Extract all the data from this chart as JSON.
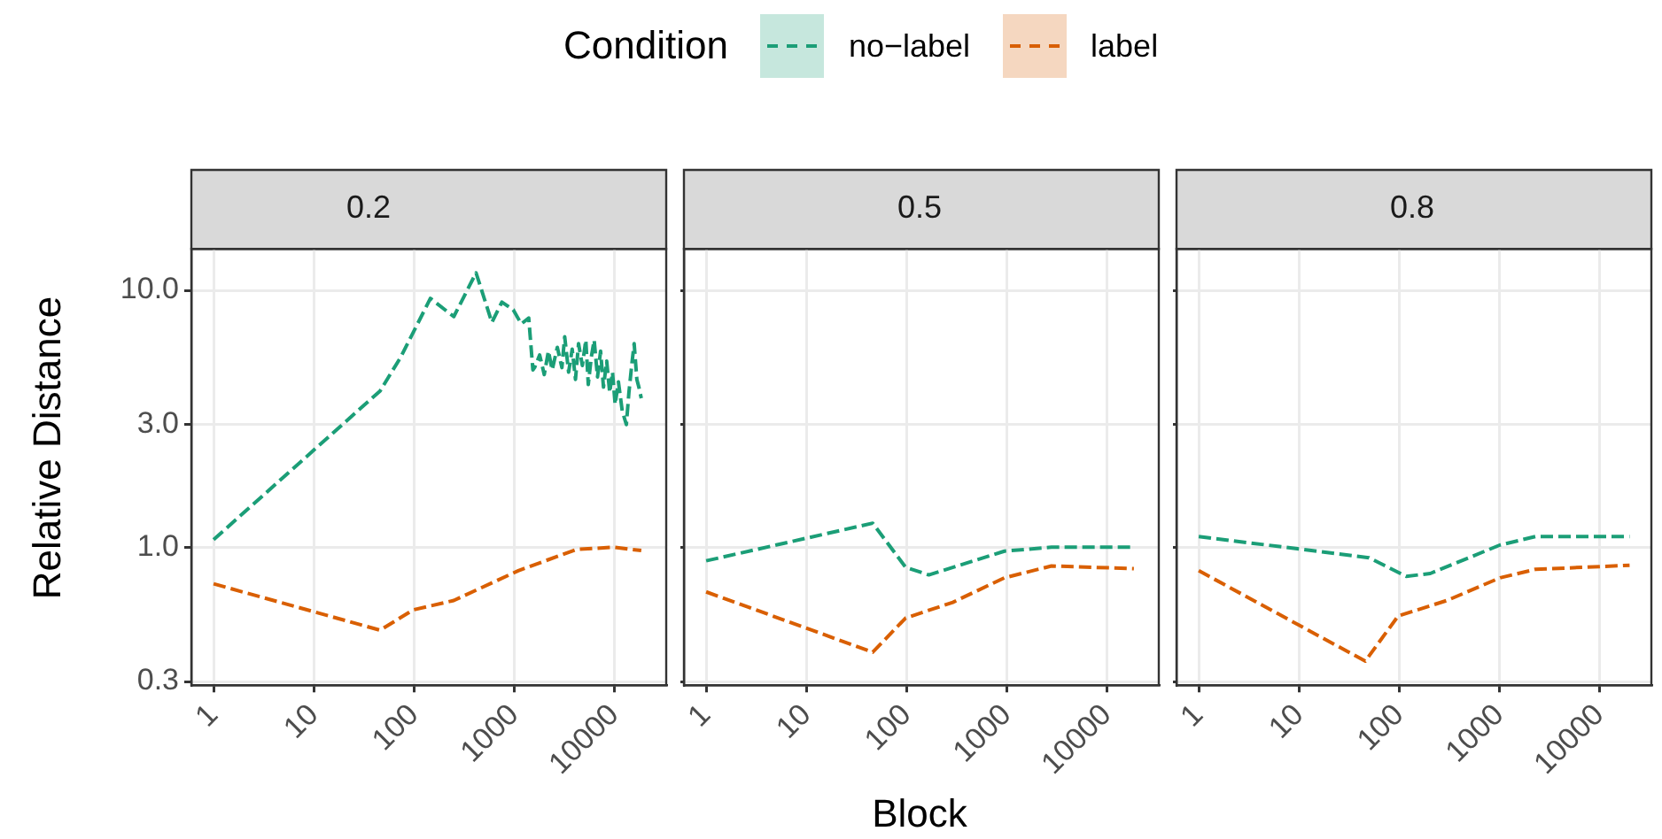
{
  "chart_data": [
    {
      "type": "line",
      "title": "0.2",
      "ylabel": "Relative Distance",
      "legend_title": "Condition",
      "legend": "top",
      "log": "xy",
      "grid": true,
      "line_style": "dashed",
      "xlim": [
        0.61,
        33000
      ],
      "xticks": [
        1,
        10,
        100,
        1000,
        10000
      ],
      "ylim": [
        0.29,
        14.5
      ],
      "yticks": [
        {
          "value": 0.3,
          "label": "0.3"
        },
        {
          "value": 1,
          "label": "1.0"
        },
        {
          "value": 3,
          "label": "3.0"
        },
        {
          "value": 10,
          "label": "10.0"
        }
      ],
      "series": [
        {
          "name": "no−label",
          "color": "#1b9e77",
          "x": [
            1,
            46,
            74,
            146,
            250,
            417,
            600,
            755,
            980,
            1180,
            1400,
            1540,
            1600,
            1800,
            2000,
            2200,
            2400,
            2700,
            3000,
            3200,
            3500,
            3800,
            4100,
            4400,
            4800,
            5200,
            5500,
            5900,
            6300,
            6800,
            7300,
            7800,
            8400,
            9000,
            9600,
            10200,
            11000,
            12000,
            13200,
            14000,
            15000,
            15800,
            16800,
            17600,
            18600
          ],
          "values": [
            1.07,
            4.06,
            5.5,
            9.3,
            7.9,
            11.7,
            7.5,
            9.0,
            8.4,
            7.4,
            7.8,
            4.9,
            5.0,
            5.6,
            4.7,
            5.8,
            4.9,
            6.0,
            5.0,
            6.6,
            4.8,
            5.9,
            4.5,
            6.2,
            5.1,
            6.4,
            4.3,
            5.5,
            6.4,
            4.6,
            5.8,
            4.2,
            5.3,
            4.0,
            4.8,
            3.6,
            4.4,
            3.4,
            3.0,
            4.0,
            5.2,
            6.2,
            4.5,
            4.2,
            3.8
          ]
        },
        {
          "name": "label",
          "color": "#d95f02",
          "x": [
            1,
            46,
            98,
            250,
            1100,
            4200,
            10000,
            18600
          ],
          "values": [
            0.72,
            0.475,
            0.57,
            0.62,
            0.81,
            0.98,
            1.0,
            0.97
          ]
        }
      ]
    },
    {
      "type": "line",
      "title": "0.5",
      "xlabel": "Block",
      "log": "xy",
      "grid": true,
      "line_style": "dashed",
      "tick_labels": "x",
      "xlim": [
        0.61,
        33000
      ],
      "xticks": [
        1,
        10,
        100,
        1000,
        10000
      ],
      "ylim": [
        0.29,
        14.5
      ],
      "yticks": [
        0.3,
        1,
        3,
        10
      ],
      "series": [
        {
          "color": "#1b9e77",
          "x": [
            1,
            46,
            98,
            167,
            950,
            2800,
            18600
          ],
          "values": [
            0.885,
            1.24,
            0.835,
            0.78,
            0.965,
            1.0,
            1.0
          ]
        },
        {
          "color": "#d95f02",
          "x": [
            1,
            46,
            98,
            290,
            950,
            2800,
            18600
          ],
          "values": [
            0.67,
            0.39,
            0.53,
            0.61,
            0.76,
            0.845,
            0.825
          ]
        }
      ]
    },
    {
      "type": "line",
      "title": "0.8",
      "log": "xy",
      "grid": true,
      "line_style": "dashed",
      "tick_labels": "x",
      "xlim": [
        0.61,
        33000
      ],
      "xticks": [
        1,
        10,
        100,
        1000,
        10000
      ],
      "ylim": [
        0.29,
        14.5
      ],
      "yticks": [
        0.3,
        1,
        3,
        10
      ],
      "series": [
        {
          "color": "#1b9e77",
          "x": [
            1,
            50,
            118,
            205,
            1020,
            2300,
            20000
          ],
          "values": [
            1.1,
            0.91,
            0.77,
            0.79,
            1.02,
            1.1,
            1.1
          ]
        },
        {
          "color": "#d95f02",
          "x": [
            1,
            46,
            98,
            300,
            1020,
            2300,
            20000
          ],
          "values": [
            0.81,
            0.36,
            0.54,
            0.62,
            0.76,
            0.82,
            0.85
          ]
        }
      ]
    }
  ]
}
